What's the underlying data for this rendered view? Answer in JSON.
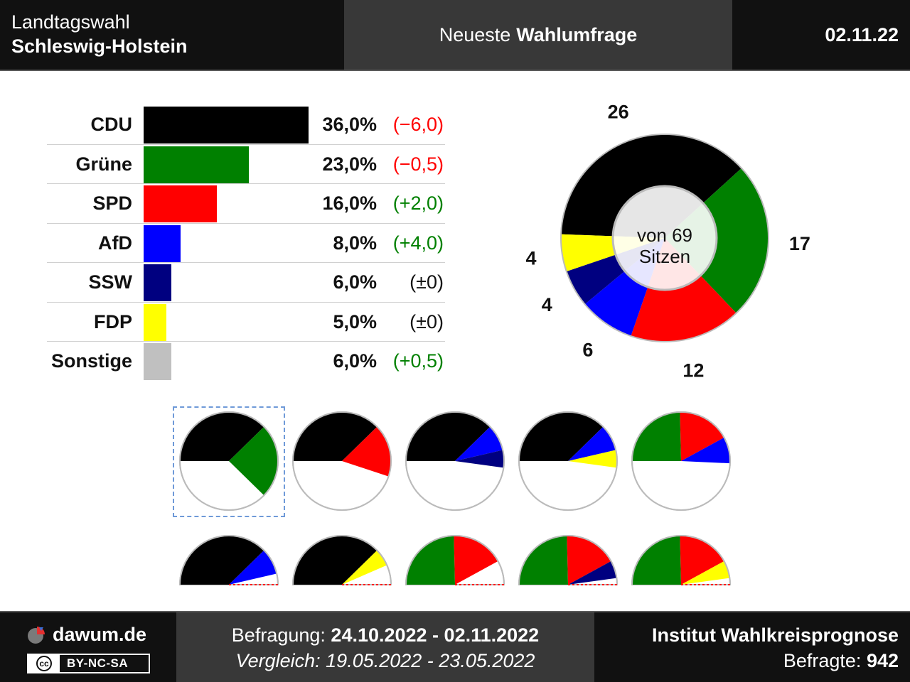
{
  "header": {
    "election_type": "Landtagswahl",
    "state": "Schleswig-Holstein",
    "subtitle_prefix": "Neueste",
    "subtitle_bold": "Wahlumfrage",
    "date": "02.11.22"
  },
  "chart_data": [
    {
      "type": "bar",
      "categories": [
        "CDU",
        "Grüne",
        "SPD",
        "AfD",
        "SSW",
        "FDP",
        "Sonstige"
      ],
      "values": [
        36.0,
        23.0,
        16.0,
        8.0,
        6.0,
        5.0,
        6.0
      ],
      "value_labels": [
        "36,0%",
        "23,0%",
        "16,0%",
        "8,0%",
        "6,0%",
        "5,0%",
        "6,0%"
      ],
      "diff_labels": [
        "(−6,0)",
        "(−0,5)",
        "(+2,0)",
        "(+4,0)",
        "(±0)",
        "(±0)",
        "(+0,5)"
      ],
      "diff_values": [
        -6.0,
        -0.5,
        2.0,
        4.0,
        0,
        0,
        0.5
      ],
      "colors": [
        "#000000",
        "#008000",
        "#ff0000",
        "#0000ff",
        "#000080",
        "#ffff00",
        "#c0c0c0"
      ]
    },
    {
      "type": "pie",
      "title": "von 69 Sitzen",
      "total_seats": 69,
      "categories": [
        "CDU",
        "Grüne",
        "SPD",
        "AfD",
        "SSW",
        "FDP"
      ],
      "values": [
        26,
        17,
        12,
        6,
        4,
        4
      ],
      "colors": [
        "#000000",
        "#008000",
        "#ff0000",
        "#0000ff",
        "#000080",
        "#ffff00"
      ]
    }
  ],
  "center_label": {
    "line1": "von 69",
    "line2": "Sitzen"
  },
  "coalitions": [
    {
      "parties": [
        "CDU",
        "Grüne"
      ],
      "majority": true,
      "selected": true
    },
    {
      "parties": [
        "CDU",
        "SPD"
      ],
      "majority": true
    },
    {
      "parties": [
        "CDU",
        "AfD",
        "SSW"
      ],
      "majority": true
    },
    {
      "parties": [
        "CDU",
        "AfD",
        "FDP"
      ],
      "majority": true
    },
    {
      "parties": [
        "Grüne",
        "SPD",
        "AfD"
      ],
      "majority": true
    },
    {
      "parties": [
        "CDU",
        "AfD"
      ],
      "majority": false
    },
    {
      "parties": [
        "CDU",
        "FDP"
      ],
      "majority": false
    },
    {
      "parties": [
        "Grüne",
        "SPD"
      ],
      "majority": false
    },
    {
      "parties": [
        "Grüne",
        "SPD",
        "SSW"
      ],
      "majority": false
    },
    {
      "parties": [
        "Grüne",
        "SPD",
        "FDP"
      ],
      "majority": false
    }
  ],
  "footer": {
    "brand": "dawum.de",
    "license": "BY-NC-SA",
    "cc_mark": "cc",
    "survey_label": "Befragung:",
    "survey_range": "24.10.2022 - 02.11.2022",
    "compare_label": "Vergleich:",
    "compare_range": "19.05.2022 - 23.05.2022",
    "institute": "Institut Wahlkreisprognose",
    "respondents_label": "Befragte:",
    "respondents": "942"
  },
  "colors": {
    "positive": "#008000",
    "negative": "#ff0000",
    "neutral": "#111111",
    "majority_line": "#ff0000"
  },
  "icons": {
    "brand": "pie-chart-icon",
    "license": "creative-commons-icon"
  }
}
